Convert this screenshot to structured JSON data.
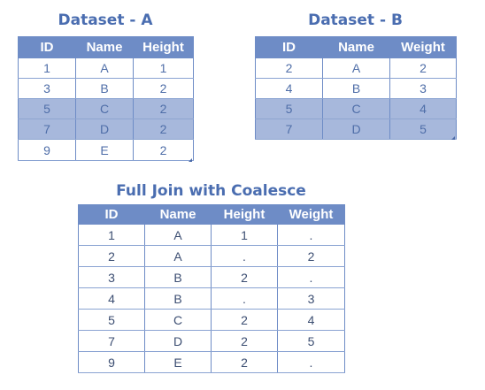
{
  "dataset_a": {
    "title": "Dataset - A",
    "headers": [
      "ID",
      "Name",
      "Height"
    ],
    "rows": [
      [
        "1",
        "A",
        "1"
      ],
      [
        "3",
        "B",
        "2"
      ],
      [
        "5",
        "C",
        "2"
      ],
      [
        "7",
        "D",
        "2"
      ],
      [
        "9",
        "E",
        "2"
      ]
    ],
    "highlighted_rows": [
      2,
      3
    ]
  },
  "dataset_b": {
    "title": "Dataset - B",
    "headers": [
      "ID",
      "Name",
      "Weight"
    ],
    "rows": [
      [
        "2",
        "A",
        "2"
      ],
      [
        "4",
        "B",
        "3"
      ],
      [
        "5",
        "C",
        "4"
      ],
      [
        "7",
        "D",
        "5"
      ]
    ],
    "highlighted_rows": [
      2,
      3
    ]
  },
  "joined": {
    "title": "Full Join with Coalesce",
    "headers": [
      "ID",
      "Name",
      "Height",
      "Weight"
    ],
    "rows": [
      [
        "1",
        "A",
        "1",
        "."
      ],
      [
        "2",
        "A",
        ".",
        "2"
      ],
      [
        "3",
        "B",
        "2",
        "."
      ],
      [
        "4",
        "B",
        ".",
        "3"
      ],
      [
        "5",
        "C",
        "2",
        "4"
      ],
      [
        "7",
        "D",
        "2",
        "5"
      ],
      [
        "9",
        "E",
        "2",
        "."
      ]
    ],
    "highlighted_rows": []
  },
  "colors": {
    "header_bg": "#6e8cc6",
    "highlight_bg": "#a7b8dc",
    "title": "#4a6db0",
    "cell_text": "#4f6ea8"
  }
}
